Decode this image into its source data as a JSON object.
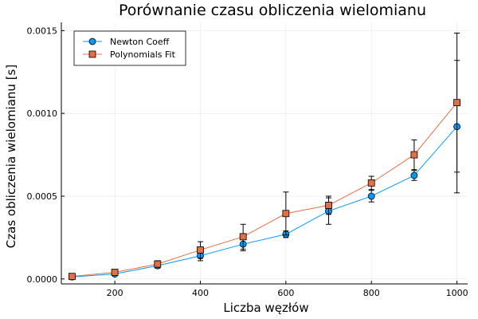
{
  "chart_data": {
    "type": "line",
    "title": "Porównanie czasu obliczenia wielomianu",
    "xlabel": "Liczba węzłów",
    "ylabel": "Czas obliczenia wielomianu [s]",
    "x": [
      100,
      200,
      300,
      400,
      500,
      600,
      700,
      800,
      900,
      1000
    ],
    "xlim": [
      75,
      1025
    ],
    "ylim": [
      -3e-05,
      0.00155
    ],
    "xticks": [
      200,
      400,
      600,
      800,
      1000
    ],
    "xtick_labels": [
      "200",
      "400",
      "600",
      "800",
      "1000"
    ],
    "yticks": [
      0.0,
      0.0005,
      0.001,
      0.0015
    ],
    "ytick_labels": [
      "0.0000",
      "0.0005",
      "0.0010",
      "0.0015"
    ],
    "grid": true,
    "legend_position": "top-left",
    "series": [
      {
        "name": "Newton Coeff",
        "color": "#009AFA",
        "marker": "circle",
        "values": [
          1.2e-05,
          3e-05,
          8e-05,
          0.00014,
          0.00021,
          0.00027,
          0.00041,
          0.0005,
          0.000625,
          0.00092
        ],
        "err": [
          5e-06,
          6e-06,
          1.5e-05,
          3e-05,
          4e-05,
          2e-05,
          8e-05,
          3.5e-05,
          3e-05,
          0.0004
        ]
      },
      {
        "name": "Polynomials Fit",
        "color": "#E26F46",
        "marker": "square",
        "values": [
          1.5e-05,
          4e-05,
          9e-05,
          0.000175,
          0.000255,
          0.000395,
          0.000445,
          0.00058,
          0.00075,
          0.001065
        ],
        "err": [
          5e-06,
          8e-06,
          2e-05,
          5e-05,
          7.5e-05,
          0.00013,
          5.5e-05,
          4e-05,
          9e-05,
          0.00042
        ]
      }
    ]
  }
}
